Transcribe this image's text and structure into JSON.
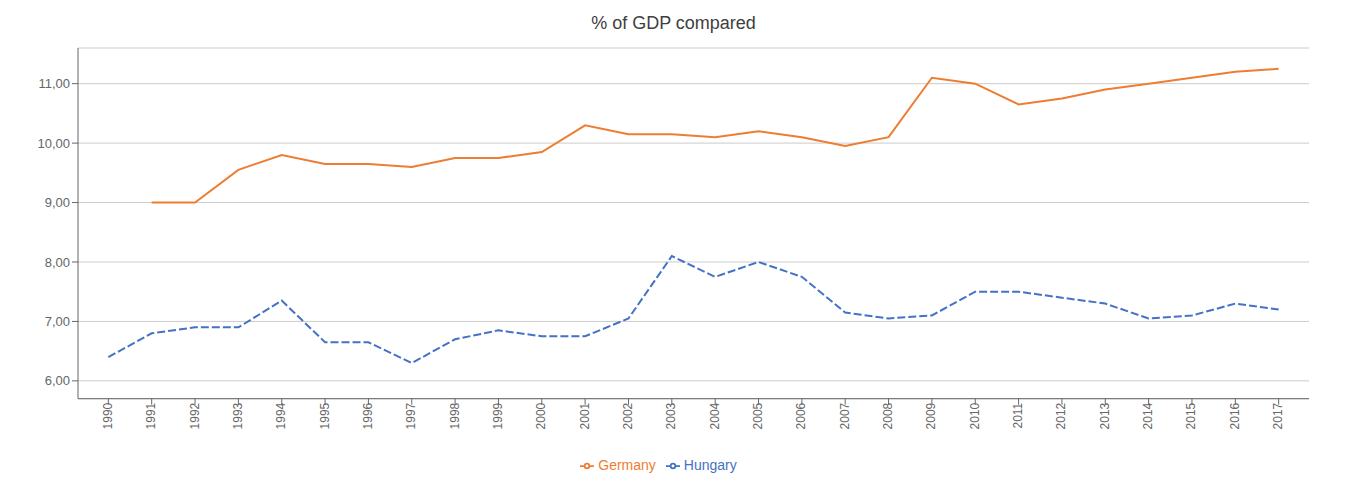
{
  "chart_data": {
    "type": "line",
    "title": "% of GDP compared",
    "x": [
      1990,
      1991,
      1992,
      1993,
      1994,
      1995,
      1996,
      1997,
      1998,
      1999,
      2000,
      2001,
      2002,
      2003,
      2004,
      2005,
      2006,
      2007,
      2008,
      2009,
      2010,
      2011,
      2012,
      2013,
      2014,
      2015,
      2016,
      2017
    ],
    "series": [
      {
        "name": "Hungary",
        "color": "#4472C4",
        "line_style": "dashed",
        "values": [
          6.4,
          6.8,
          6.9,
          6.9,
          7.35,
          6.65,
          6.65,
          6.3,
          6.7,
          6.85,
          6.75,
          6.75,
          7.05,
          8.1,
          7.75,
          8.0,
          7.75,
          7.15,
          7.05,
          7.1,
          7.5,
          7.5,
          7.4,
          7.3,
          7.05,
          7.1,
          7.3,
          7.2
        ]
      },
      {
        "name": "Germany",
        "color": "#ED7D31",
        "line_style": "solid",
        "values": [
          null,
          9.0,
          9.0,
          9.55,
          9.8,
          9.65,
          9.65,
          9.6,
          9.75,
          9.75,
          9.85,
          10.3,
          10.15,
          10.15,
          10.1,
          10.2,
          10.1,
          9.95,
          10.1,
          11.1,
          11.0,
          10.65,
          10.75,
          10.9,
          11.0,
          11.1,
          11.2,
          11.25
        ]
      }
    ],
    "xlim": [
      1989.3,
      2017.7
    ],
    "xticks": [
      1990,
      1991,
      1992,
      1993,
      1994,
      1995,
      1996,
      1997,
      1998,
      1999,
      2000,
      2001,
      2002,
      2003,
      2004,
      2005,
      2006,
      2007,
      2008,
      2009,
      2010,
      2011,
      2012,
      2013,
      2014,
      2015,
      2016,
      2017
    ],
    "ylim": [
      5.7,
      11.6
    ],
    "yticks": [
      {
        "value": 6.0,
        "label": "6,00"
      },
      {
        "value": 7.0,
        "label": "7,00"
      },
      {
        "value": 8.0,
        "label": "8,00"
      },
      {
        "value": 9.0,
        "label": "9,00"
      },
      {
        "value": 10.0,
        "label": "10,00"
      },
      {
        "value": 11.0,
        "label": "11,00"
      }
    ],
    "grid": "y",
    "legend": "bottom"
  }
}
